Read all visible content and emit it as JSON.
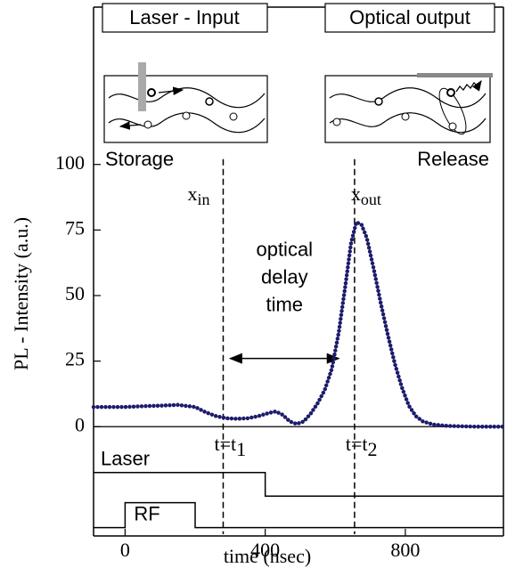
{
  "chart_data": {
    "type": "line",
    "xlabel": "time (nsec)",
    "ylabel": "PL - Intensity (a.u.)",
    "xlim": [
      -90,
      1080
    ],
    "ylim": [
      -41,
      160
    ],
    "xticks": [
      0,
      400,
      800
    ],
    "yticks": [
      0,
      25,
      50,
      75,
      100
    ],
    "x": [
      -90,
      -40,
      0,
      50,
      100,
      150,
      200,
      230,
      260,
      290,
      320,
      350,
      380,
      410,
      430,
      450,
      470,
      490,
      510,
      530,
      550,
      570,
      590,
      610,
      630,
      645,
      660,
      675,
      690,
      710,
      730,
      750,
      770,
      790,
      810,
      830,
      850,
      880,
      920,
      1000,
      1080
    ],
    "series": [
      {
        "color": "#1c1c6b",
        "values": [
          7.5,
          7.5,
          7.5,
          7.8,
          8,
          8.3,
          7.5,
          5.5,
          4,
          3.2,
          3,
          3.2,
          4,
          5.2,
          5.8,
          4.5,
          2,
          1,
          2,
          5,
          9,
          14,
          22,
          36,
          55,
          70,
          78,
          77,
          72,
          60,
          47,
          35,
          24,
          15,
          8,
          4,
          2,
          0.8,
          0.3,
          0,
          0
        ]
      }
    ],
    "traces": [
      {
        "name": "Laser",
        "x": [
          -90,
          400,
          400,
          1080
        ],
        "values": [
          -17.5,
          -17.5,
          -26.5,
          -26.5
        ]
      },
      {
        "name": "RF",
        "x": [
          -90,
          0,
          0,
          200,
          200,
          1080
        ],
        "values": [
          -38.5,
          -38.5,
          -29,
          -29,
          -38.5,
          -38.5
        ]
      }
    ],
    "markers": [
      {
        "x": 280,
        "label": "x",
        "sub": "in",
        "time_label": "t=t",
        "time_sub": "1"
      },
      {
        "x": 655,
        "label": "x",
        "sub": "out",
        "time_label": "t=t",
        "time_sub": "2"
      }
    ],
    "arrow": {
      "x": [
        300,
        610
      ],
      "y": 26,
      "label": [
        "optical",
        "delay",
        "time"
      ]
    },
    "panels": [
      {
        "title": "Laser - Input",
        "caption": "Storage"
      },
      {
        "title": "Optical output",
        "caption": "Release"
      }
    ]
  }
}
